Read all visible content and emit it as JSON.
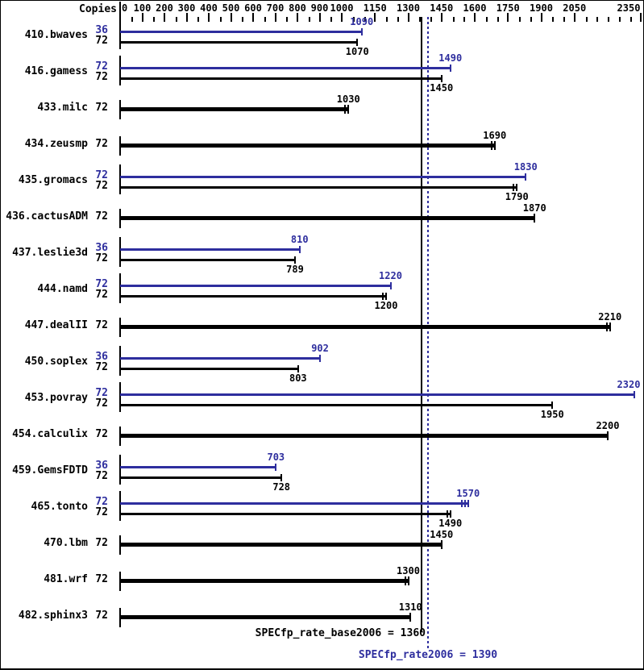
{
  "chart_data": {
    "type": "bar",
    "orientation": "horizontal",
    "copies_header": "Copies",
    "colors": {
      "peak": "#2e2e9e",
      "base": "#000000"
    },
    "x_axis": {
      "min": 0,
      "max": 2350,
      "labeled_ticks": [
        0,
        100,
        200,
        300,
        400,
        500,
        600,
        700,
        800,
        900,
        1000,
        1150,
        1300,
        1450,
        1600,
        1750,
        1900,
        2050,
        2350
      ],
      "minor_tick_step": 50
    },
    "reference_lines": [
      {
        "label": "SPECfp_rate_base2006 = 1360",
        "value": 1360,
        "series": "base",
        "style": "solid",
        "color": "#000000"
      },
      {
        "label": "SPECfp_rate2006 = 1390",
        "value": 1390,
        "series": "peak",
        "style": "dotted",
        "color": "#2e2e9e"
      }
    ],
    "benchmarks": [
      {
        "name": "410.bwaves",
        "bars": [
          {
            "series": "peak",
            "copies": 36,
            "value": 1090,
            "ticks": 1
          },
          {
            "series": "base",
            "copies": 72,
            "value": 1070,
            "ticks": 1
          }
        ]
      },
      {
        "name": "416.gamess",
        "bars": [
          {
            "series": "peak",
            "copies": 72,
            "value": 1490,
            "ticks": 1
          },
          {
            "series": "base",
            "copies": 72,
            "value": 1450,
            "ticks": 1
          }
        ]
      },
      {
        "name": "433.milc",
        "bars": [
          {
            "series": "both",
            "copies": 72,
            "value": 1030,
            "ticks": 2
          }
        ]
      },
      {
        "name": "434.zeusmp",
        "bars": [
          {
            "series": "both",
            "copies": 72,
            "value": 1690,
            "ticks": 2
          }
        ]
      },
      {
        "name": "435.gromacs",
        "bars": [
          {
            "series": "peak",
            "copies": 72,
            "value": 1830,
            "ticks": 1
          },
          {
            "series": "base",
            "copies": 72,
            "value": 1790,
            "ticks": 2
          }
        ]
      },
      {
        "name": "436.cactusADM",
        "bars": [
          {
            "series": "both",
            "copies": 72,
            "value": 1870,
            "ticks": 1
          }
        ]
      },
      {
        "name": "437.leslie3d",
        "bars": [
          {
            "series": "peak",
            "copies": 36,
            "value": 810,
            "ticks": 1
          },
          {
            "series": "base",
            "copies": 72,
            "value": 789,
            "ticks": 1
          }
        ]
      },
      {
        "name": "444.namd",
        "bars": [
          {
            "series": "peak",
            "copies": 72,
            "value": 1220,
            "ticks": 1
          },
          {
            "series": "base",
            "copies": 72,
            "value": 1200,
            "ticks": 2
          }
        ]
      },
      {
        "name": "447.dealII",
        "bars": [
          {
            "series": "both",
            "copies": 72,
            "value": 2210,
            "ticks": 2
          }
        ]
      },
      {
        "name": "450.soplex",
        "bars": [
          {
            "series": "peak",
            "copies": 36,
            "value": 902,
            "ticks": 1
          },
          {
            "series": "base",
            "copies": 72,
            "value": 803,
            "ticks": 1
          }
        ]
      },
      {
        "name": "453.povray",
        "bars": [
          {
            "series": "peak",
            "copies": 72,
            "value": 2320,
            "ticks": 1
          },
          {
            "series": "base",
            "copies": 72,
            "value": 1950,
            "ticks": 1
          }
        ]
      },
      {
        "name": "454.calculix",
        "bars": [
          {
            "series": "both",
            "copies": 72,
            "value": 2200,
            "ticks": 1
          }
        ]
      },
      {
        "name": "459.GemsFDTD",
        "bars": [
          {
            "series": "peak",
            "copies": 36,
            "value": 703,
            "ticks": 1
          },
          {
            "series": "base",
            "copies": 72,
            "value": 728,
            "ticks": 1
          }
        ]
      },
      {
        "name": "465.tonto",
        "bars": [
          {
            "series": "peak",
            "copies": 72,
            "value": 1570,
            "ticks": 3
          },
          {
            "series": "base",
            "copies": 72,
            "value": 1490,
            "ticks": 2
          }
        ]
      },
      {
        "name": "470.lbm",
        "bars": [
          {
            "series": "both",
            "copies": 72,
            "value": 1450,
            "ticks": 1
          }
        ]
      },
      {
        "name": "481.wrf",
        "bars": [
          {
            "series": "both",
            "copies": 72,
            "value": 1300,
            "ticks": 2
          }
        ]
      },
      {
        "name": "482.sphinx3",
        "bars": [
          {
            "series": "both",
            "copies": 72,
            "value": 1310,
            "ticks": 1
          }
        ]
      }
    ]
  }
}
